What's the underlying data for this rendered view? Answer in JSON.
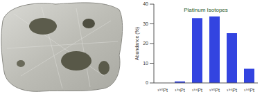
{
  "chart_data": {
    "type": "bar",
    "title": "Platinum Isotopes",
    "y_label": "Abundance (%)",
    "categories": [
      "¹⁹⁰Pt",
      "¹⁹²Pt",
      "¹⁹⁴Pt",
      "¹⁹⁵Pt",
      "¹⁹⁶Pt",
      "¹⁹⁸Pt"
    ],
    "values": [
      0.01,
      0.78,
      32.9,
      33.8,
      25.3,
      7.2
    ],
    "color": "#3344e0",
    "ylim": [
      0,
      40
    ],
    "yticks": [
      0,
      10,
      20,
      30,
      40
    ],
    "grid": false
  }
}
